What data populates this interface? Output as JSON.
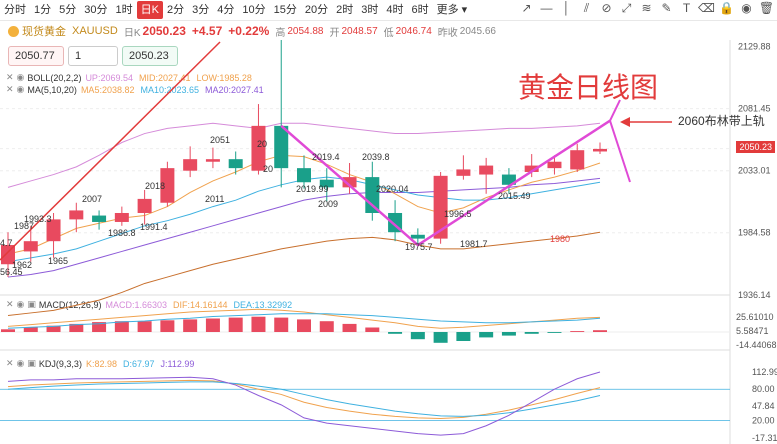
{
  "toolbar": {
    "timeframes": [
      "分时",
      "1分",
      "5分",
      "30分",
      "1时",
      "日K",
      "2分",
      "3分",
      "4分",
      "10分",
      "15分",
      "20分",
      "2时",
      "3时",
      "4时",
      "6时",
      "更多"
    ],
    "active": "日K",
    "tool_icons": [
      "trend-line-icon",
      "horizontal-line-icon",
      "vertical-line-icon",
      "parallel-line-icon",
      "channel-icon",
      "measure-icon",
      "fib-icon",
      "pen-icon",
      "text-icon",
      "eraser-icon",
      "lock-icon",
      "eye-icon",
      "trash-icon"
    ]
  },
  "header": {
    "name": "现货黄金",
    "symbol": "XAUUSD",
    "timeframe": "日K",
    "price": "2050.23",
    "change": "+4.57",
    "change_pct": "+0.22%",
    "high_label": "高",
    "high": "2054.88",
    "open_label": "开",
    "open": "2048.57",
    "low_label": "低",
    "low": "2046.74",
    "prev_label": "昨收",
    "prev": "2045.66"
  },
  "order": {
    "sell": "2050.77",
    "qty": "1",
    "buy": "2050.23"
  },
  "legends": {
    "boll": {
      "name": "BOLL(20,2,2)",
      "up": "UP:2069.54",
      "mid": "MID:2027.41",
      "low": "LOW:1985.28"
    },
    "ma": {
      "name": "MA(5,10,20)",
      "ma5": "MA5:2038.82",
      "ma10": "MA10:2023.65",
      "ma20": "MA20:2027.41"
    },
    "macd": {
      "name": "MACD(12,26,9)",
      "macd": "MACD:1.66303",
      "dif": "DIF:14.16144",
      "dea": "DEA:13.32992"
    },
    "kdj": {
      "name": "KDJ(9,3,3)",
      "k": "K:82.98",
      "d": "D:67.97",
      "j": "J:112.99"
    }
  },
  "axis": {
    "main": [
      "2129.88",
      "2081.45",
      "2050.23",
      "2033.01",
      "1984.58",
      "1936.14"
    ],
    "macd": [
      "25.61010",
      "5.58471",
      "-14.44068"
    ],
    "kdj": [
      "112.99",
      "80.00",
      "47.84",
      "20.00",
      "-17.31"
    ]
  },
  "price_labels": {
    "p1": "2051",
    "p2": "2011",
    "p3": "2018",
    "p4": "1991.4",
    "p5": "2007",
    "p6": "1986.8",
    "p7": "1993.3",
    "p8": "1987",
    "p9": "1962",
    "p10": "1965",
    "p11": "2019.4",
    "p12": "2039.8",
    "p13": "2019.99",
    "p14": "2009",
    "p15": "2020.04",
    "p16": "1996.5",
    "p17": "1975.7",
    "p18": "1981.7",
    "p19": "2015.49",
    "p20": "1980",
    "p21": "56.45",
    "p22": "4.7",
    "p23": "20",
    "p24": "20"
  },
  "annotations": {
    "title": "黄金日线图",
    "note": "2060布林带上轨"
  },
  "colors": {
    "up": "#e84a5f",
    "down": "#1aa08a",
    "accent": "#e23b3b",
    "boll_up": "#d58bd9",
    "ma5": "#f0a24e",
    "ma10": "#3fb1e0",
    "ma20": "#8d5bd8",
    "arrow": "#e04ad6"
  },
  "chart_data": {
    "type": "candlestick",
    "series": [
      {
        "name": "candles",
        "values": [
          {
            "o": 1960,
            "c": 1975,
            "h": 1985,
            "l": 1950
          },
          {
            "o": 1970,
            "c": 1978,
            "h": 1990,
            "l": 1962
          },
          {
            "o": 1978,
            "c": 1995,
            "h": 2000,
            "l": 1965
          },
          {
            "o": 1995,
            "c": 2002,
            "h": 2008,
            "l": 1985
          },
          {
            "o": 1998,
            "c": 1993,
            "h": 2002,
            "l": 1987
          },
          {
            "o": 1993,
            "c": 2000,
            "h": 2005,
            "l": 1990
          },
          {
            "o": 2000,
            "c": 2011,
            "h": 2018,
            "l": 1991
          },
          {
            "o": 2008,
            "c": 2035,
            "h": 2040,
            "l": 2005
          },
          {
            "o": 2033,
            "c": 2042,
            "h": 2052,
            "l": 2028
          },
          {
            "o": 2040,
            "c": 2042,
            "h": 2051,
            "l": 2035
          },
          {
            "o": 2042,
            "c": 2035,
            "h": 2048,
            "l": 2030
          },
          {
            "o": 2033,
            "c": 2068,
            "h": 2085,
            "l": 2030
          },
          {
            "o": 2068,
            "c": 2035,
            "h": 2135,
            "l": 2020
          },
          {
            "o": 2035,
            "c": 2024,
            "h": 2045,
            "l": 2019
          },
          {
            "o": 2026,
            "c": 2020,
            "h": 2035,
            "l": 2009
          },
          {
            "o": 2020,
            "c": 2028,
            "h": 2039,
            "l": 2015
          },
          {
            "o": 2028,
            "c": 2000,
            "h": 2040,
            "l": 1994
          },
          {
            "o": 2000,
            "c": 1985,
            "h": 2010,
            "l": 1978
          },
          {
            "o": 1983,
            "c": 1980,
            "h": 1988,
            "l": 1975
          },
          {
            "o": 1980,
            "c": 2029,
            "h": 2032,
            "l": 1976
          },
          {
            "o": 2029,
            "c": 2034,
            "h": 2045,
            "l": 2026
          },
          {
            "o": 2030,
            "c": 2037,
            "h": 2043,
            "l": 2015
          },
          {
            "o": 2030,
            "c": 2022,
            "h": 2035,
            "l": 2015
          },
          {
            "o": 2032,
            "c": 2037,
            "h": 2046,
            "l": 2028
          },
          {
            "o": 2035,
            "c": 2040,
            "h": 2045,
            "l": 2030
          },
          {
            "o": 2034,
            "c": 2049,
            "h": 2054,
            "l": 2032
          },
          {
            "o": 2048,
            "c": 2050,
            "h": 2055,
            "l": 2046
          }
        ]
      }
    ],
    "y_range": [
      1936,
      2135
    ],
    "boll_up": [
      2020,
      2025,
      2030,
      2036,
      2045,
      2055,
      2062,
      2066,
      2068,
      2070,
      2068,
      2066,
      2070,
      2070,
      2068,
      2066,
      2064,
      2062,
      2062,
      2063,
      2064,
      2065,
      2066,
      2066,
      2067,
      2068,
      2070
    ],
    "ma5": [
      1968,
      1972,
      1980,
      1988,
      1992,
      1996,
      1998,
      2005,
      2016,
      2025,
      2032,
      2040,
      2045,
      2044,
      2038,
      2030,
      2024,
      2015,
      2005,
      2000,
      2004,
      2012,
      2018,
      2024,
      2028,
      2033,
      2039
    ],
    "ma10": [
      1962,
      1965,
      1968,
      1972,
      1978,
      1984,
      1990,
      1994,
      1999,
      2005,
      2010,
      2017,
      2022,
      2026,
      2028,
      2026,
      2022,
      2018,
      2014,
      2012,
      2010,
      2010,
      2012,
      2015,
      2018,
      2021,
      2024
    ],
    "boll_mid": [
      1950,
      1952,
      1955,
      1960,
      1965,
      1970,
      1975,
      1980,
      1985,
      1990,
      1995,
      2000,
      2005,
      2010,
      2013,
      2015,
      2016,
      2016,
      2016,
      2017,
      2018,
      2019,
      2020,
      2022,
      2023,
      2025,
      2027
    ],
    "boll_low": [
      1920,
      1922,
      1924,
      1928,
      1932,
      1938,
      1945,
      1950,
      1955,
      1960,
      1964,
      1968,
      1972,
      1975,
      1978,
      1980,
      1981,
      1979,
      1975,
      1972,
      1972,
      1974,
      1976,
      1978,
      1980,
      1982,
      1985
    ],
    "macd_hist": [
      3,
      5,
      7,
      9,
      11,
      12,
      12,
      13,
      14,
      15,
      16,
      17,
      16,
      14,
      12,
      9,
      5,
      -2,
      -8,
      -12,
      -10,
      -6,
      -4,
      -2,
      -1,
      1,
      2
    ],
    "macd_dif": [
      4,
      6,
      8,
      10,
      12,
      14,
      16,
      18,
      20,
      21,
      22,
      23,
      22,
      20,
      17,
      14,
      11,
      8,
      4,
      2,
      3,
      5,
      7,
      9,
      11,
      13,
      14
    ],
    "macd_dea": [
      2,
      3,
      4,
      6,
      7,
      9,
      10,
      12,
      13,
      15,
      16,
      17,
      18,
      18,
      18,
      17,
      16,
      14,
      12,
      10,
      9,
      8,
      8,
      9,
      10,
      11,
      13
    ],
    "kdj_k": [
      85,
      88,
      90,
      92,
      93,
      94,
      95,
      96,
      97,
      96,
      90,
      80,
      70,
      55,
      45,
      38,
      32,
      28,
      25,
      24,
      26,
      32,
      40,
      50,
      60,
      72,
      83
    ],
    "kdj_d": [
      80,
      83,
      86,
      88,
      90,
      91,
      92,
      93,
      94,
      94,
      91,
      86,
      80,
      70,
      60,
      52,
      45,
      38,
      33,
      29,
      28,
      30,
      35,
      42,
      50,
      58,
      68
    ],
    "kdj_j": [
      95,
      98,
      98,
      100,
      100,
      100,
      101,
      102,
      103,
      100,
      88,
      68,
      50,
      25,
      15,
      10,
      5,
      0,
      -5,
      -8,
      -5,
      10,
      30,
      55,
      80,
      100,
      113
    ]
  }
}
